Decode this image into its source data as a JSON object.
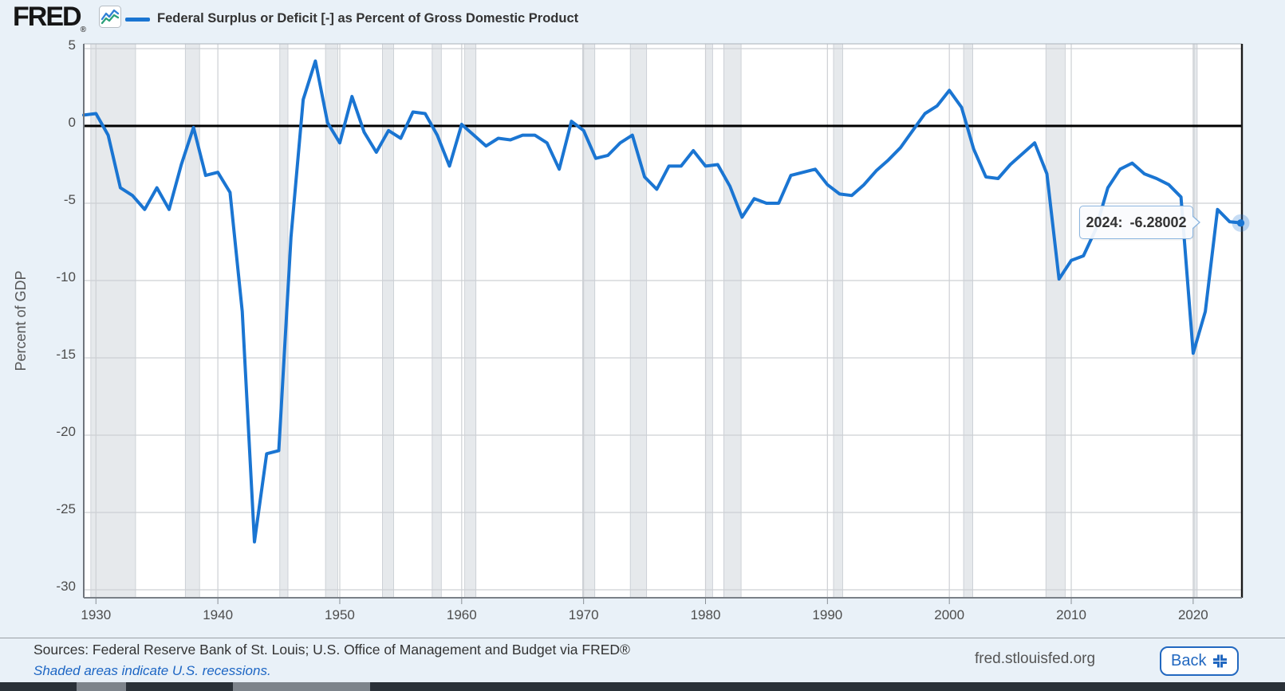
{
  "header": {
    "logo_text": "FRED",
    "registered_mark": "®",
    "legend_label": "Federal Surplus or Deficit [-] as Percent of Gross Domestic Product"
  },
  "tooltip": {
    "label": "2024:",
    "value": "-6.28002"
  },
  "chart_data": {
    "type": "line",
    "title": "",
    "xlabel": "",
    "ylabel": "Percent of GDP",
    "x_domain": [
      1929,
      2024
    ],
    "ylim": [
      -30.5,
      5.3
    ],
    "y_ticks": [
      5,
      0,
      -5,
      -10,
      -15,
      -20,
      -25,
      -30
    ],
    "x_ticks": [
      1930,
      1940,
      1950,
      1960,
      1970,
      1980,
      1990,
      2000,
      2010,
      2020
    ],
    "grid": true,
    "zero_line": 0,
    "legend_position": "top-left",
    "series": [
      {
        "name": "Federal Surplus or Deficit [-] as Percent of Gross Domestic Product",
        "color": "#1a75d2",
        "start_year": 1929,
        "values": [
          0.7,
          0.8,
          -0.6,
          -4.0,
          -4.5,
          -5.4,
          -4.0,
          -5.4,
          -2.5,
          -0.1,
          -3.2,
          -3.0,
          -4.3,
          -12.0,
          -26.9,
          -21.2,
          -21.0,
          -7.2,
          1.7,
          4.2,
          0.2,
          -1.1,
          1.9,
          -0.4,
          -1.7,
          -0.3,
          -0.8,
          0.9,
          0.8,
          -0.6,
          -2.6,
          0.1,
          -0.6,
          -1.3,
          -0.8,
          -0.9,
          -0.6,
          -0.6,
          -1.1,
          -2.8,
          0.3,
          -0.3,
          -2.1,
          -1.9,
          -1.1,
          -0.6,
          -3.3,
          -4.1,
          -2.6,
          -2.6,
          -1.6,
          -2.6,
          -2.5,
          -3.9,
          -5.9,
          -4.7,
          -5.0,
          -5.0,
          -3.2,
          -3.0,
          -2.8,
          -3.8,
          -4.4,
          -4.5,
          -3.8,
          -2.9,
          -2.2,
          -1.4,
          -0.3,
          0.8,
          1.3,
          2.3,
          1.2,
          -1.5,
          -3.3,
          -3.4,
          -2.5,
          -1.8,
          -1.1,
          -3.1,
          -9.9,
          -8.7,
          -8.4,
          -6.7,
          -4.0,
          -2.8,
          -2.4,
          -3.1,
          -3.4,
          -3.8,
          -4.6,
          -14.7,
          -12.0,
          -5.4,
          -6.2,
          -6.28002
        ]
      }
    ],
    "end_marker": {
      "year": 2024,
      "value": -6.28002
    },
    "recessions": [
      [
        1929.58,
        1933.25
      ],
      [
        1937.33,
        1938.5
      ],
      [
        1945.08,
        1945.75
      ],
      [
        1948.83,
        1949.83
      ],
      [
        1953.5,
        1954.42
      ],
      [
        1957.58,
        1958.33
      ],
      [
        1960.25,
        1961.17
      ],
      [
        1969.92,
        1970.92
      ],
      [
        1973.83,
        1975.17
      ],
      [
        1980.0,
        1980.58
      ],
      [
        1981.5,
        1982.92
      ],
      [
        1990.5,
        1991.25
      ],
      [
        2001.17,
        2001.92
      ],
      [
        2007.92,
        2009.5
      ],
      [
        2020.08,
        2020.33
      ]
    ],
    "recession_band_color": "#e6e9ec"
  },
  "footer": {
    "sources": "Sources: Federal Reserve Bank of St. Louis; U.S. Office of Management and Budget via FRED®",
    "recession_note": "Shaded areas indicate U.S. recessions.",
    "site_link": "fred.stlouisfed.org",
    "back_label": "Back"
  },
  "colors": {
    "page_background": "#e9f1f8",
    "plot_background": "#ffffff",
    "line": "#1a75d2",
    "zero_line": "#000000",
    "gridline": "#cdd0d4",
    "accent_blue": "#1d66c4",
    "axis_text": "#4d4d4d"
  }
}
